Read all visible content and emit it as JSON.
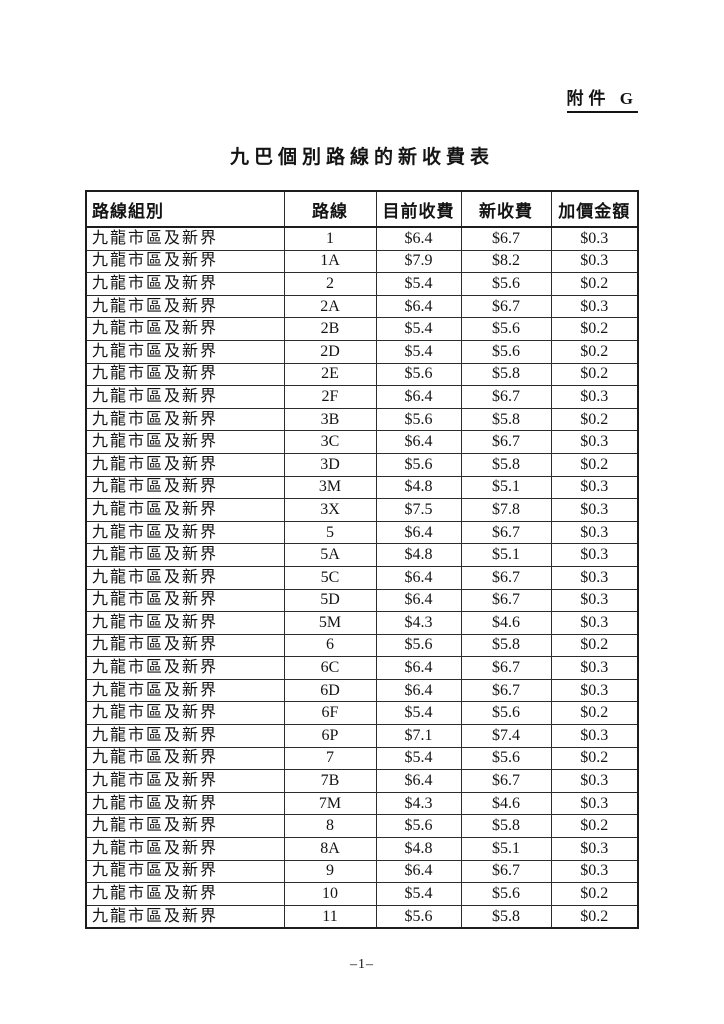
{
  "appendix_label": "附件 G",
  "title": "九巴個別路線的新收費表",
  "table": {
    "headers": [
      "路線組別",
      "路線",
      "目前收費",
      "新收費",
      "加價金額"
    ],
    "rows": [
      [
        "九龍市區及新界",
        "1",
        "$6.4",
        "$6.7",
        "$0.3"
      ],
      [
        "九龍市區及新界",
        "1A",
        "$7.9",
        "$8.2",
        "$0.3"
      ],
      [
        "九龍市區及新界",
        "2",
        "$5.4",
        "$5.6",
        "$0.2"
      ],
      [
        "九龍市區及新界",
        "2A",
        "$6.4",
        "$6.7",
        "$0.3"
      ],
      [
        "九龍市區及新界",
        "2B",
        "$5.4",
        "$5.6",
        "$0.2"
      ],
      [
        "九龍市區及新界",
        "2D",
        "$5.4",
        "$5.6",
        "$0.2"
      ],
      [
        "九龍市區及新界",
        "2E",
        "$5.6",
        "$5.8",
        "$0.2"
      ],
      [
        "九龍市區及新界",
        "2F",
        "$6.4",
        "$6.7",
        "$0.3"
      ],
      [
        "九龍市區及新界",
        "3B",
        "$5.6",
        "$5.8",
        "$0.2"
      ],
      [
        "九龍市區及新界",
        "3C",
        "$6.4",
        "$6.7",
        "$0.3"
      ],
      [
        "九龍市區及新界",
        "3D",
        "$5.6",
        "$5.8",
        "$0.2"
      ],
      [
        "九龍市區及新界",
        "3M",
        "$4.8",
        "$5.1",
        "$0.3"
      ],
      [
        "九龍市區及新界",
        "3X",
        "$7.5",
        "$7.8",
        "$0.3"
      ],
      [
        "九龍市區及新界",
        "5",
        "$6.4",
        "$6.7",
        "$0.3"
      ],
      [
        "九龍市區及新界",
        "5A",
        "$4.8",
        "$5.1",
        "$0.3"
      ],
      [
        "九龍市區及新界",
        "5C",
        "$6.4",
        "$6.7",
        "$0.3"
      ],
      [
        "九龍市區及新界",
        "5D",
        "$6.4",
        "$6.7",
        "$0.3"
      ],
      [
        "九龍市區及新界",
        "5M",
        "$4.3",
        "$4.6",
        "$0.3"
      ],
      [
        "九龍市區及新界",
        "6",
        "$5.6",
        "$5.8",
        "$0.2"
      ],
      [
        "九龍市區及新界",
        "6C",
        "$6.4",
        "$6.7",
        "$0.3"
      ],
      [
        "九龍市區及新界",
        "6D",
        "$6.4",
        "$6.7",
        "$0.3"
      ],
      [
        "九龍市區及新界",
        "6F",
        "$5.4",
        "$5.6",
        "$0.2"
      ],
      [
        "九龍市區及新界",
        "6P",
        "$7.1",
        "$7.4",
        "$0.3"
      ],
      [
        "九龍市區及新界",
        "7",
        "$5.4",
        "$5.6",
        "$0.2"
      ],
      [
        "九龍市區及新界",
        "7B",
        "$6.4",
        "$6.7",
        "$0.3"
      ],
      [
        "九龍市區及新界",
        "7M",
        "$4.3",
        "$4.6",
        "$0.3"
      ],
      [
        "九龍市區及新界",
        "8",
        "$5.6",
        "$5.8",
        "$0.2"
      ],
      [
        "九龍市區及新界",
        "8A",
        "$4.8",
        "$5.1",
        "$0.3"
      ],
      [
        "九龍市區及新界",
        "9",
        "$6.4",
        "$6.7",
        "$0.3"
      ],
      [
        "九龍市區及新界",
        "10",
        "$5.4",
        "$5.6",
        "$0.2"
      ],
      [
        "九龍市區及新界",
        "11",
        "$5.6",
        "$5.8",
        "$0.2"
      ]
    ]
  },
  "footer": {
    "page_number": "–1–"
  }
}
